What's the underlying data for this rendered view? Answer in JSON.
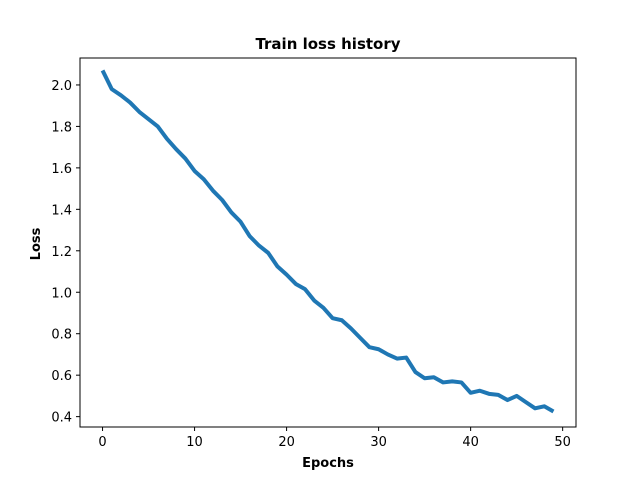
{
  "chart_data": {
    "type": "line",
    "title": "Train loss history",
    "xlabel": "Epochs",
    "ylabel": "Loss",
    "xlim": [
      -2.45,
      51.45
    ],
    "ylim": [
      0.35,
      2.13
    ],
    "xticks": [
      0,
      10,
      20,
      30,
      40,
      50
    ],
    "yticks": [
      0.4,
      0.6,
      0.8,
      1.0,
      1.2,
      1.4,
      1.6,
      1.8,
      2.0
    ],
    "grid": false,
    "series": [
      {
        "color": "#1f77b4",
        "x": [
          0,
          1,
          2,
          3,
          4,
          5,
          6,
          7,
          8,
          9,
          10,
          11,
          12,
          13,
          14,
          15,
          16,
          17,
          18,
          19,
          20,
          21,
          22,
          23,
          24,
          25,
          26,
          27,
          28,
          29,
          30,
          31,
          32,
          33,
          34,
          35,
          36,
          37,
          38,
          39,
          40,
          41,
          42,
          43,
          44,
          45,
          46,
          47,
          48,
          49
        ],
        "values": [
          2.07,
          1.98,
          1.95,
          1.915,
          1.87,
          1.835,
          1.8,
          1.74,
          1.69,
          1.645,
          1.585,
          1.545,
          1.49,
          1.445,
          1.385,
          1.34,
          1.27,
          1.225,
          1.19,
          1.125,
          1.085,
          1.04,
          1.015,
          0.96,
          0.925,
          0.875,
          0.865,
          0.825,
          0.78,
          0.735,
          0.725,
          0.7,
          0.68,
          0.685,
          0.615,
          0.585,
          0.59,
          0.565,
          0.57,
          0.565,
          0.515,
          0.525,
          0.51,
          0.505,
          0.48,
          0.5,
          0.47,
          0.44,
          0.45,
          0.425
        ]
      }
    ]
  }
}
